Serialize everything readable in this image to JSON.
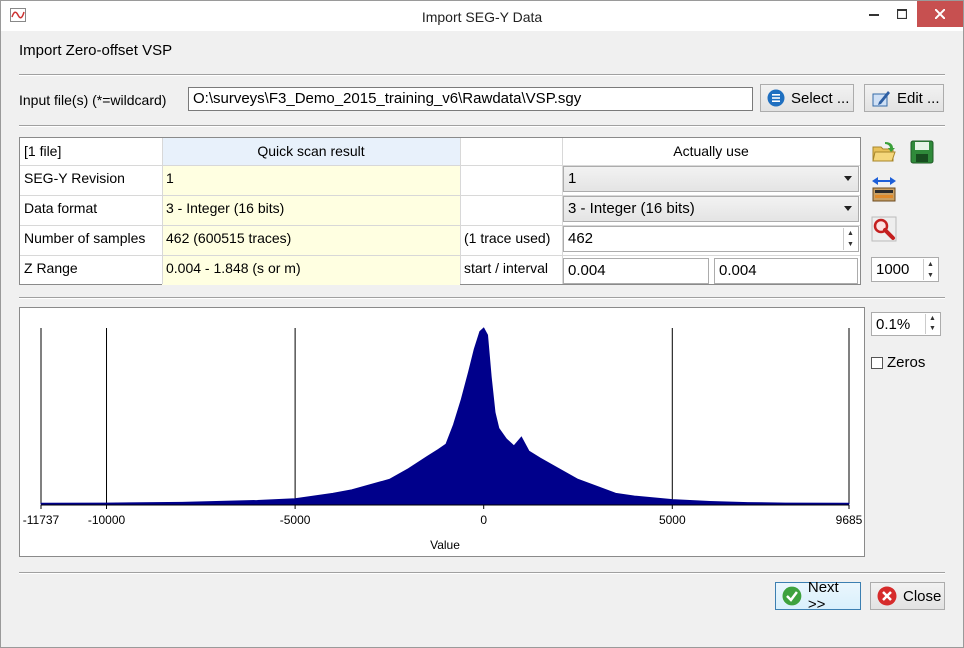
{
  "window": {
    "title": "Import SEG-Y Data",
    "minimize_icon": "minimize-icon",
    "maximize_icon": "maximize-icon",
    "close_icon": "close-icon"
  },
  "section": {
    "title": "Import Zero-offset VSP"
  },
  "input": {
    "label": "Input file(s) (*=wildcard)",
    "value": "O:\\surveys\\F3_Demo_2015_training_v6\\Rawdata\\VSP.sgy",
    "select_label": "Select ...",
    "edit_label": "Edit ..."
  },
  "table": {
    "files_header": "[1 file]",
    "scan_header": "Quick scan result",
    "use_header": "Actually use",
    "rows": [
      {
        "label": "SEG-Y Revision",
        "scan": "1",
        "note": "",
        "use": "1"
      },
      {
        "label": "Data format",
        "scan": "3 - Integer (16 bits)",
        "note": "",
        "use": "3 - Integer (16 bits)"
      },
      {
        "label": "Number of samples",
        "scan": "462 (600515 traces)",
        "note": "(1 trace used)",
        "use": "462"
      },
      {
        "label": "Z Range",
        "scan": "0.004 - 1.848 (s or m)",
        "note": "start / interval",
        "use_start": "0.004",
        "use_interval": "0.004"
      }
    ],
    "zfactor": "1000"
  },
  "tools": [
    "open-folder-icon",
    "save-icon",
    "swap-bytes-icon",
    "examine-icon"
  ],
  "histogram": {
    "clip": "0.1%",
    "zeros_label": "Zeros",
    "zeros_checked": false
  },
  "chart_data": {
    "type": "area",
    "xlabel": "Value",
    "xlim": [
      -11737,
      9685
    ],
    "tick_labels": [
      "-11737",
      "-10000",
      "-5000",
      "0",
      "5000",
      "9685"
    ],
    "tick_values": [
      -11737,
      -10000,
      -5000,
      0,
      5000,
      9685
    ],
    "x": [
      -11737,
      -10000,
      -8000,
      -6000,
      -5000,
      -4000,
      -3500,
      -3000,
      -2500,
      -2000,
      -1500,
      -1200,
      -1000,
      -800,
      -600,
      -400,
      -250,
      -100,
      0,
      100,
      200,
      300,
      400,
      600,
      800,
      1000,
      1200,
      1500,
      2000,
      2500,
      3000,
      3500,
      4000,
      5000,
      6000,
      7000,
      8000,
      9685
    ],
    "y": [
      0.004,
      0.005,
      0.009,
      0.02,
      0.03,
      0.06,
      0.08,
      0.11,
      0.14,
      0.2,
      0.27,
      0.31,
      0.34,
      0.45,
      0.59,
      0.75,
      0.88,
      0.98,
      1.0,
      0.96,
      0.72,
      0.52,
      0.43,
      0.37,
      0.33,
      0.38,
      0.3,
      0.26,
      0.2,
      0.14,
      0.1,
      0.06,
      0.045,
      0.025,
      0.014,
      0.008,
      0.005,
      0.004
    ],
    "color": "#00008b"
  },
  "footer": {
    "next_label": "Next >>",
    "close_label": "Close"
  }
}
